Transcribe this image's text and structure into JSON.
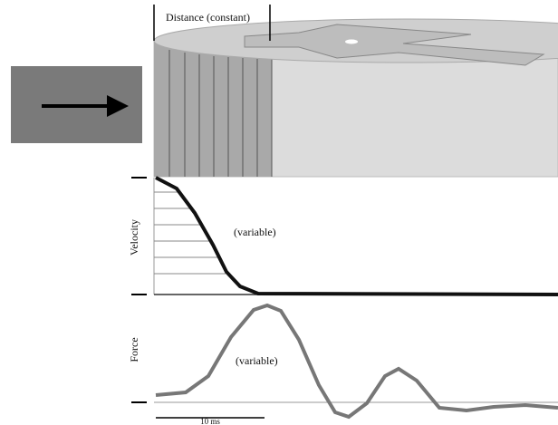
{
  "labels": {
    "distance": "Distance (constant)",
    "velocity": "Velocity",
    "velocity_note": "(variable)",
    "force": "Force",
    "force_note": "(variable)",
    "scale": "10 ms"
  }
}
